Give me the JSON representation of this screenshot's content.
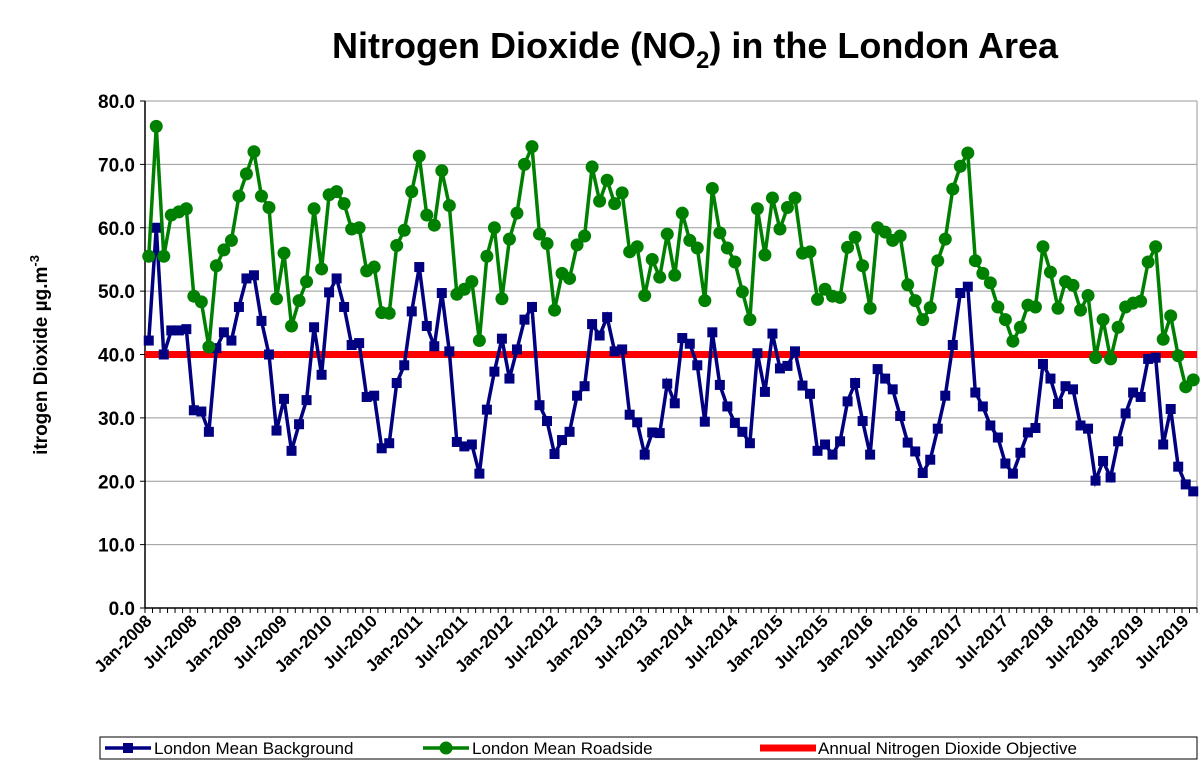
{
  "chart_data": {
    "type": "line",
    "title": {
      "before": "Nitrogen Dioxide (NO",
      "sub": "2",
      "after": ") in the London Area"
    },
    "y_label": {
      "text": "itrogen Dioxide µg.m",
      "sup": "-3"
    },
    "categories": [
      "Jan-2008",
      null,
      null,
      null,
      null,
      null,
      "Jul-2008",
      null,
      null,
      null,
      null,
      null,
      "Jan-2009",
      null,
      null,
      null,
      null,
      null,
      "Jul-2009",
      null,
      null,
      null,
      null,
      null,
      "Jan-2010",
      null,
      null,
      null,
      null,
      null,
      "Jul-2010",
      null,
      null,
      null,
      null,
      null,
      "Jan-2011",
      null,
      null,
      null,
      null,
      null,
      "Jul-2011",
      null,
      null,
      null,
      null,
      null,
      "Jan-2012",
      null,
      null,
      null,
      null,
      null,
      "Jul-2012",
      null,
      null,
      null,
      null,
      null,
      "Jan-2013",
      null,
      null,
      null,
      null,
      null,
      "Jul-2013",
      null,
      null,
      null,
      null,
      null,
      "Jan-2014",
      null,
      null,
      null,
      null,
      null,
      "Jul-2014",
      null,
      null,
      null,
      null,
      null,
      "Jan-2015",
      null,
      null,
      null,
      null,
      null,
      "Jul-2015",
      null,
      null,
      null,
      null,
      null,
      "Jan-2016",
      null,
      null,
      null,
      null,
      null,
      "Jul-2016",
      null,
      null,
      null,
      null,
      null,
      "Jan-2017",
      null,
      null,
      null,
      null,
      null,
      "Jul-2017",
      null,
      null,
      null,
      null,
      null,
      "Jan-2018",
      null,
      null,
      null,
      null,
      null,
      "Jul-2018",
      null,
      null,
      null,
      null,
      null,
      "Jan-2019",
      null,
      null,
      null,
      null,
      null,
      "Jul-2019",
      null
    ],
    "series": [
      {
        "name": "London Mean Background",
        "color": "#000080",
        "marker": "square",
        "values": [
          42.2,
          60,
          40,
          43.8,
          43.8,
          44,
          31.2,
          31,
          27.8,
          41,
          43.5,
          42.2,
          47.5,
          52,
          52.5,
          45.3,
          40,
          28,
          33,
          24.8,
          29,
          32.8,
          44.3,
          36.8,
          49.8,
          52,
          47.5,
          41.5,
          41.8,
          33.3,
          33.5,
          25.2,
          26,
          35.5,
          38.3,
          46.8,
          53.8,
          44.5,
          41.3,
          49.7,
          40.5,
          26.2,
          25.5,
          25.8,
          21.2,
          31.3,
          37.3,
          42.5,
          36.2,
          40.8,
          45.5,
          47.5,
          32,
          29.5,
          24.3,
          26.5,
          27.8,
          33.5,
          35,
          44.8,
          43,
          45.9,
          40.5,
          40.8,
          30.5,
          29.3,
          24.2,
          27.7,
          27.6,
          35.4,
          32.3,
          42.6,
          41.7,
          38.3,
          29.4,
          43.5,
          35.2,
          31.8,
          29.2,
          27.8,
          26,
          40.2,
          34.1,
          43.3,
          37.8,
          38.2,
          40.5,
          35.1,
          33.8,
          24.8,
          25.8,
          24.2,
          26.3,
          32.6,
          35.5,
          29.5,
          24.2,
          37.7,
          36.2,
          34.5,
          30.3,
          26.1,
          24.7,
          21.3,
          23.4,
          28.3,
          33.5,
          41.5,
          49.7,
          50.7,
          34,
          31.8,
          28.8,
          26.9,
          22.8,
          21.2,
          24.5,
          27.7,
          28.4,
          38.5,
          36.2,
          32.2,
          35,
          34.5,
          28.8,
          28.3,
          20.1,
          23.2,
          20.6,
          26.3,
          30.7,
          34,
          33.3,
          39.3,
          39.5,
          25.8,
          31.4,
          22.3,
          19.5,
          18.4
        ]
      },
      {
        "name": "London Mean Roadside",
        "color": "#008000",
        "marker": "circle",
        "values": [
          55.5,
          76,
          55.5,
          62,
          62.5,
          63,
          49.2,
          48.3,
          41.2,
          54,
          56.5,
          58,
          65,
          68.5,
          72,
          65,
          63.2,
          48.8,
          56,
          44.5,
          48.5,
          51.5,
          63,
          53.5,
          65.2,
          65.7,
          63.8,
          59.8,
          60,
          53.2,
          53.8,
          46.6,
          46.5,
          57.2,
          59.6,
          65.7,
          71.3,
          62,
          60.4,
          69,
          63.5,
          49.5,
          50.3,
          51.5,
          42.2,
          55.5,
          60,
          48.8,
          58.2,
          62.3,
          70,
          72.8,
          59,
          57.5,
          47,
          52.8,
          52,
          57.3,
          58.7,
          69.6,
          64.2,
          67.5,
          63.8,
          65.5,
          56.2,
          57,
          49.3,
          55,
          52.2,
          59,
          52.5,
          62.3,
          58,
          56.8,
          48.5,
          66.2,
          59.2,
          56.8,
          54.6,
          49.9,
          45.5,
          63,
          55.7,
          64.7,
          59.8,
          63.2,
          64.7,
          56,
          56.2,
          48.7,
          50.3,
          49.2,
          49,
          56.9,
          58.5,
          54,
          47.3,
          60,
          59.3,
          58,
          58.7,
          51,
          48.5,
          45.5,
          47.4,
          54.8,
          58.2,
          66.1,
          69.7,
          71.8,
          54.8,
          52.8,
          51.3,
          47.5,
          45.5,
          42.1,
          44.3,
          47.8,
          47.5,
          57,
          53,
          47.3,
          51.5,
          50.9,
          47,
          49.3,
          39.5,
          45.5,
          39.3,
          44.3,
          47.5,
          48.1,
          48.4,
          54.6,
          57,
          42.4,
          46.1,
          39.8,
          34.9,
          36
        ]
      }
    ],
    "objective": {
      "name": "Annual Nitrogen Dioxide Objective",
      "color": "#ff0000",
      "value": 40
    },
    "ylim": [
      0,
      80
    ],
    "yticks": [
      {
        "value": 0,
        "label": "0.0"
      },
      {
        "value": 10,
        "label": "10.0"
      },
      {
        "value": 20,
        "label": "20.0"
      },
      {
        "value": 30,
        "label": "30.0"
      },
      {
        "value": 40,
        "label": "40.0"
      },
      {
        "value": 50,
        "label": "50.0"
      },
      {
        "value": 60,
        "label": "60.0"
      },
      {
        "value": 70,
        "label": "70.0"
      },
      {
        "value": 80,
        "label": "80.0"
      }
    ],
    "grid": true,
    "legend": "bottom"
  }
}
